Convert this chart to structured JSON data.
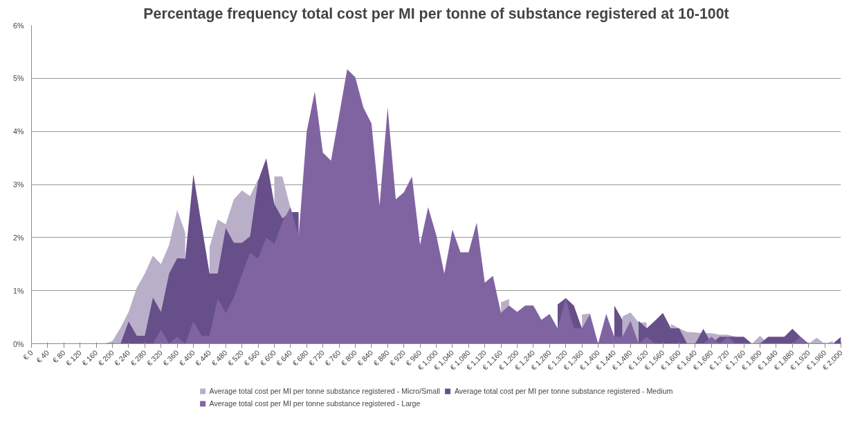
{
  "chart_data": {
    "type": "area",
    "title": "Percentage frequency total cost per MI per tonne of substance registered at 10-100t",
    "categories": [
      "€ 0",
      null,
      "€ 40",
      null,
      "€ 80",
      null,
      "€ 120",
      null,
      "€ 160",
      null,
      "€ 200",
      null,
      "€ 240",
      null,
      "€ 280",
      null,
      "€ 320",
      null,
      "€ 360",
      null,
      "€ 400",
      null,
      "€ 440",
      null,
      "€ 480",
      null,
      "€ 520",
      null,
      "€ 560",
      null,
      "€ 600",
      null,
      "€ 640",
      null,
      "€ 680",
      null,
      "€ 720",
      null,
      "€ 760",
      null,
      "€ 800",
      null,
      "€ 840",
      null,
      "€ 880",
      null,
      "€ 920",
      null,
      "€ 960",
      null,
      "€ 1,000",
      null,
      "€ 1,040",
      null,
      "€ 1,080",
      null,
      "€ 1,120",
      null,
      "€ 1,160",
      null,
      "€ 1,200",
      null,
      "€ 1,240",
      null,
      "€ 1,280",
      null,
      "€ 1,320",
      null,
      "€ 1,360",
      null,
      "€ 1,400",
      null,
      "€ 1,440",
      null,
      "€ 1,480",
      null,
      "€ 1,520",
      null,
      "€ 1,560",
      null,
      "€ 1,600",
      null,
      "€ 1,640",
      null,
      "€ 1,680",
      null,
      "€ 1,720",
      null,
      "€ 1,760",
      null,
      "€ 1,800",
      null,
      "€ 1,840",
      null,
      "€ 1,880",
      null,
      "€ 1,920",
      null,
      "€ 1,960",
      null,
      "€ 2,000"
    ],
    "series": [
      {
        "name": "Average total cost per MI per tonne substance registered - Micro/Small",
        "color": "#b9afc9",
        "values": [
          0,
          0,
          0,
          0,
          0,
          0,
          0,
          0,
          0,
          0,
          0.05,
          0.3,
          0.6,
          1.05,
          1.32,
          1.66,
          1.5,
          1.86,
          2.52,
          2.09,
          null,
          null,
          1.82,
          2.34,
          2.25,
          2.72,
          2.89,
          2.78,
          3.1,
          null,
          3.15,
          3.15,
          2.55,
          null,
          null,
          null,
          null,
          null,
          null,
          null,
          null,
          null,
          null,
          null,
          null,
          null,
          null,
          null,
          null,
          null,
          null,
          null,
          null,
          null,
          null,
          null,
          null,
          null,
          0.78,
          0.84,
          null,
          null,
          null,
          null,
          null,
          null,
          null,
          null,
          0.55,
          0.57,
          null,
          null,
          null,
          0.51,
          0.59,
          0.4,
          0.4,
          null,
          null,
          0.37,
          0.29,
          0.22,
          0.21,
          0.2,
          0.2,
          0.17,
          0.17,
          0.13,
          null,
          0,
          0.15,
          0,
          null,
          null,
          null,
          null,
          0,
          0.11,
          0,
          0.05,
          null
        ]
      },
      {
        "name": "Average total cost per MI per tonne substance registered - Medium",
        "color": "#674f8a",
        "values": [
          0,
          0,
          0,
          0,
          0,
          0,
          0,
          0,
          0,
          0,
          0,
          0,
          0.42,
          0.15,
          0.15,
          0.87,
          0.6,
          1.32,
          1.61,
          1.6,
          3.19,
          2.25,
          1.32,
          1.32,
          2.18,
          1.9,
          1.9,
          2.02,
          3.07,
          3.49,
          2.63,
          2.36,
          2.48,
          2.48,
          null,
          null,
          null,
          null,
          null,
          null,
          null,
          null,
          null,
          null,
          null,
          null,
          null,
          null,
          null,
          null,
          null,
          null,
          null,
          null,
          null,
          null,
          null,
          null,
          null,
          null,
          null,
          null,
          null,
          null,
          null,
          0.74,
          0.86,
          0.72,
          0.29,
          null,
          null,
          null,
          0.72,
          0.45,
          null,
          0.43,
          0.29,
          0.43,
          0.58,
          0.29,
          0.29,
          0,
          0,
          0.28,
          0,
          0.13,
          0.13,
          0.13,
          0.13,
          0,
          0,
          0.13,
          0.13,
          0.13,
          0.28,
          0.13,
          0,
          0,
          0,
          0,
          0.13
        ]
      },
      {
        "name": "Average total cost per MI per tonne substance registered - Large",
        "color": "#8064a2",
        "values": [
          0,
          0,
          0,
          0,
          0,
          0,
          0,
          0,
          0,
          0,
          0,
          0,
          0,
          0,
          0,
          0,
          0.27,
          0,
          0.13,
          0,
          0.42,
          0.15,
          0.15,
          0.85,
          0.58,
          0.87,
          1.3,
          1.71,
          1.6,
          2.0,
          1.88,
          2.3,
          2.57,
          2.02,
          4.0,
          4.75,
          3.6,
          3.45,
          4.3,
          5.17,
          5.02,
          4.45,
          4.15,
          2.6,
          4.45,
          2.72,
          2.85,
          3.15,
          1.86,
          2.57,
          2.05,
          1.32,
          2.15,
          1.72,
          1.72,
          2.28,
          1.15,
          1.28,
          0.58,
          0.72,
          0.6,
          0.72,
          0.72,
          0.45,
          0.56,
          0.29,
          0.85,
          0.29,
          0.29,
          0.56,
          0,
          0.56,
          0.13,
          0.13,
          0.43,
          0,
          0.13,
          0,
          0,
          0,
          0,
          0,
          0,
          0,
          0.13,
          0,
          0.13,
          0,
          0,
          0,
          0,
          0,
          0,
          0,
          0,
          0.13,
          0,
          0,
          0,
          0,
          0
        ]
      }
    ],
    "ylim": [
      0,
      6
    ],
    "yticks": [
      {
        "value": 0,
        "label": "0%"
      },
      {
        "value": 1,
        "label": "1%"
      },
      {
        "value": 2,
        "label": "2%"
      },
      {
        "value": 3,
        "label": "3%"
      },
      {
        "value": 4,
        "label": "4%"
      },
      {
        "value": 5,
        "label": "5%"
      },
      {
        "value": 6,
        "label": "6%"
      }
    ],
    "grid": "y",
    "legend": "bottom"
  }
}
